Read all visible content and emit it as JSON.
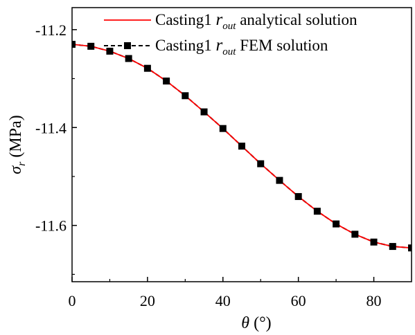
{
  "chart_data": {
    "type": "line",
    "xlabel": {
      "symbol": "θ",
      "unit": "(°)"
    },
    "ylabel": {
      "symbol": "σ",
      "subscript": "r",
      "unit": "(MPa)"
    },
    "xlim": [
      0,
      90
    ],
    "ylim": [
      -11.715,
      -11.155
    ],
    "xticks": [
      0,
      20,
      40,
      60,
      80
    ],
    "yticks": [
      -11.2,
      -11.4,
      -11.6
    ],
    "ytick_labels": [
      "-11.2",
      "-11.4",
      "-11.6"
    ],
    "grid": false,
    "legend_position": "top-right",
    "series": [
      {
        "name_main": "Casting1",
        "name_var": "r",
        "name_sub": "out",
        "name_tail": "analytical solution",
        "style": "solid-line",
        "color": "#ff0000",
        "x": [
          0,
          5,
          10,
          15,
          20,
          25,
          30,
          35,
          40,
          45,
          50,
          55,
          60,
          65,
          70,
          75,
          80,
          85,
          90
        ],
        "y": [
          -11.23,
          -11.234,
          -11.244,
          -11.259,
          -11.279,
          -11.305,
          -11.335,
          -11.368,
          -11.402,
          -11.438,
          -11.474,
          -11.508,
          -11.541,
          -11.571,
          -11.597,
          -11.618,
          -11.634,
          -11.643,
          -11.646
        ]
      },
      {
        "name_main": "Casting1",
        "name_var": "r",
        "name_sub": "out",
        "name_tail": "FEM solution",
        "style": "dashed-line-square-markers",
        "color": "#000000",
        "x": [
          0,
          5,
          10,
          15,
          20,
          25,
          30,
          35,
          40,
          45,
          50,
          55,
          60,
          65,
          70,
          75,
          80,
          85,
          90
        ],
        "y": [
          -11.23,
          -11.234,
          -11.244,
          -11.259,
          -11.279,
          -11.305,
          -11.335,
          -11.368,
          -11.402,
          -11.438,
          -11.474,
          -11.508,
          -11.541,
          -11.571,
          -11.597,
          -11.618,
          -11.634,
          -11.643,
          -11.646
        ]
      }
    ]
  }
}
